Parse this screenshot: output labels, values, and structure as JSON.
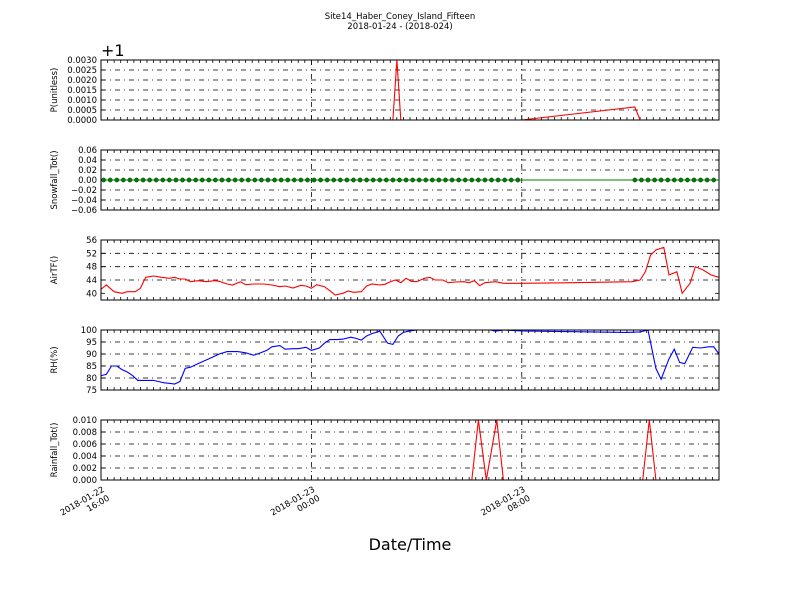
{
  "title": "Site14_Haber_Coney_Island_Fifteen",
  "subtitle": "2018-01-24 - (2018-024)",
  "xlabel": "Date/Time",
  "x_ticks": [
    "2018-01-22 16:00",
    "2018-01-23 00:00",
    "2018-01-23 08:00"
  ],
  "colors": {
    "red": "#ff0000",
    "blue": "#0000ff",
    "green": "#008000",
    "grid": "#000000"
  },
  "chart_data": [
    {
      "type": "line",
      "ylabel": "P(unitless)",
      "offset_label": "+1",
      "ylim": [
        0,
        0.003
      ],
      "yticks": [
        "0.0000",
        "0.0005",
        "0.0010",
        "0.0015",
        "0.0020",
        "0.0025",
        "0.0030"
      ],
      "ytick_values": [
        0,
        0.0005,
        0.001,
        0.0015,
        0.002,
        0.0025,
        0.003
      ],
      "series": [
        {
          "color": "red",
          "markers": false,
          "points": [
            [
              0,
              0
            ],
            [
              11.1,
              0
            ],
            [
              11.25,
              0.003
            ],
            [
              11.4,
              0
            ],
            [
              16,
              0
            ],
            [
              20.3,
              0.00065
            ],
            [
              20.5,
              0
            ],
            [
              23.5,
              0
            ]
          ]
        }
      ]
    },
    {
      "type": "line",
      "ylabel": "Snowfall_Tot()",
      "ylim": [
        -0.06,
        0.06
      ],
      "yticks": [
        "−0.06",
        "−0.04",
        "−0.02",
        "0.00",
        "0.02",
        "0.04",
        "0.06"
      ],
      "ytick_values": [
        -0.06,
        -0.04,
        -0.02,
        0,
        0.02,
        0.04,
        0.06
      ],
      "series": [
        {
          "color": "green",
          "markers": true,
          "marker_ranges": [
            [
              0.1,
              16,
              0.25
            ],
            [
              20.3,
              23.5,
              0.25
            ]
          ],
          "points": [
            [
              0,
              0
            ],
            [
              23.5,
              0
            ]
          ]
        }
      ]
    },
    {
      "type": "line",
      "ylabel": "AirTF()",
      "ylim": [
        38,
        56
      ],
      "yticks": [
        "40",
        "44",
        "48",
        "52",
        "56"
      ],
      "ytick_values": [
        40,
        44,
        48,
        52,
        56
      ],
      "series": [
        {
          "color": "red",
          "markers": false,
          "points": [
            [
              0,
              41.2
            ],
            [
              0.2,
              42.5
            ],
            [
              0.5,
              40.5
            ],
            [
              0.8,
              40
            ],
            [
              1,
              40.5
            ],
            [
              1.3,
              40.5
            ],
            [
              1.5,
              41.5
            ],
            [
              1.7,
              44.8
            ],
            [
              2,
              45.2
            ],
            [
              2.3,
              44.8
            ],
            [
              2.6,
              44.5
            ],
            [
              2.8,
              44.8
            ],
            [
              3,
              44.3
            ],
            [
              3.2,
              44.3
            ],
            [
              3.4,
              43.5
            ],
            [
              3.7,
              43.8
            ],
            [
              4,
              43.5
            ],
            [
              4.3,
              43.8
            ],
            [
              4.5,
              43.6
            ],
            [
              4.8,
              42.8
            ],
            [
              5,
              42.5
            ],
            [
              5.3,
              43.5
            ],
            [
              5.5,
              42.6
            ],
            [
              5.8,
              42.8
            ],
            [
              6.2,
              42.8
            ],
            [
              6.5,
              42.5
            ],
            [
              6.8,
              42
            ],
            [
              7,
              42.2
            ],
            [
              7.3,
              41.6
            ],
            [
              7.6,
              42.4
            ],
            [
              7.8,
              42.2
            ],
            [
              8,
              41.5
            ],
            [
              8.2,
              42.6
            ],
            [
              8.5,
              42
            ],
            [
              8.7,
              40.8
            ],
            [
              8.9,
              39.5
            ],
            [
              9.2,
              40
            ],
            [
              9.4,
              40.7
            ],
            [
              9.6,
              40.3
            ],
            [
              9.9,
              40.5
            ],
            [
              10.1,
              42.2
            ],
            [
              10.3,
              42.8
            ],
            [
              10.6,
              42.5
            ],
            [
              10.8,
              42.7
            ],
            [
              11,
              43.5
            ],
            [
              11.2,
              44
            ],
            [
              11.4,
              43.2
            ],
            [
              11.6,
              44.5
            ],
            [
              11.8,
              43.6
            ],
            [
              12,
              43.5
            ],
            [
              12.3,
              44.5
            ],
            [
              12.5,
              44.8
            ],
            [
              12.7,
              44
            ],
            [
              13,
              44
            ],
            [
              13.2,
              43.2
            ],
            [
              13.5,
              43.4
            ],
            [
              13.8,
              43.5
            ],
            [
              14,
              43.2
            ],
            [
              14.2,
              43.8
            ],
            [
              14.4,
              42.3
            ],
            [
              14.6,
              43.2
            ],
            [
              15,
              43.5
            ],
            [
              15.3,
              43
            ],
            [
              16,
              43
            ],
            [
              18,
              43.2
            ],
            [
              20.2,
              43.5
            ],
            [
              20.5,
              44
            ],
            [
              20.7,
              46.5
            ],
            [
              20.9,
              51.5
            ],
            [
              21.1,
              53
            ],
            [
              21.4,
              53.8
            ],
            [
              21.6,
              45.5
            ],
            [
              21.9,
              46.5
            ],
            [
              22.1,
              40
            ],
            [
              22.4,
              43
            ],
            [
              22.6,
              48
            ],
            [
              22.9,
              47
            ],
            [
              23.2,
              45.5
            ],
            [
              23.5,
              44.8
            ]
          ]
        }
      ]
    },
    {
      "type": "line",
      "ylabel": "RH(%)",
      "ylim": [
        75,
        100
      ],
      "yticks": [
        "75",
        "80",
        "85",
        "90",
        "95",
        "100"
      ],
      "ytick_values": [
        75,
        80,
        85,
        90,
        95,
        100
      ],
      "series": [
        {
          "color": "blue",
          "markers": false,
          "points": [
            [
              0,
              81
            ],
            [
              0.2,
              81.5
            ],
            [
              0.4,
              85
            ],
            [
              0.6,
              85
            ],
            [
              0.8,
              83.5
            ],
            [
              1,
              82.5
            ],
            [
              1.2,
              81
            ],
            [
              1.4,
              79
            ],
            [
              1.8,
              79
            ],
            [
              2,
              79
            ],
            [
              2.2,
              78.5
            ],
            [
              2.4,
              78
            ],
            [
              2.6,
              77.8
            ],
            [
              2.8,
              77.5
            ],
            [
              3,
              78.5
            ],
            [
              3.2,
              84
            ],
            [
              3.4,
              84.5
            ],
            [
              3.6,
              85.5
            ],
            [
              3.8,
              86.5
            ],
            [
              4,
              87.5
            ],
            [
              4.2,
              88.5
            ],
            [
              4.5,
              90
            ],
            [
              4.8,
              91
            ],
            [
              5.2,
              91
            ],
            [
              5.5,
              90.5
            ],
            [
              5.8,
              89.5
            ],
            [
              6,
              90.2
            ],
            [
              6.3,
              91.5
            ],
            [
              6.5,
              93
            ],
            [
              6.8,
              93.5
            ],
            [
              7,
              92
            ],
            [
              7.3,
              92.2
            ],
            [
              7.5,
              92.2
            ],
            [
              7.8,
              92.8
            ],
            [
              8,
              91.5
            ],
            [
              8.3,
              92.5
            ],
            [
              8.5,
              94.5
            ],
            [
              8.7,
              96
            ],
            [
              9,
              96
            ],
            [
              9.2,
              96.2
            ],
            [
              9.5,
              97
            ],
            [
              9.7,
              96.5
            ],
            [
              9.9,
              95.8
            ],
            [
              10.1,
              97.5
            ],
            [
              10.3,
              98.5
            ],
            [
              10.6,
              99.5
            ],
            [
              10.9,
              94.5
            ],
            [
              11.1,
              94
            ],
            [
              11.3,
              97.5
            ],
            [
              11.5,
              99
            ],
            [
              11.7,
              99.5
            ],
            [
              12,
              100
            ],
            [
              14.8,
              100
            ],
            [
              15,
              99.5
            ],
            [
              15.3,
              100
            ],
            [
              16,
              99.6
            ],
            [
              18,
              99.3
            ],
            [
              20,
              99
            ],
            [
              20.5,
              99.2
            ],
            [
              20.8,
              100
            ],
            [
              21.1,
              84
            ],
            [
              21.3,
              79.5
            ],
            [
              21.6,
              88
            ],
            [
              21.8,
              92
            ],
            [
              22,
              86.5
            ],
            [
              22.2,
              86
            ],
            [
              22.5,
              92.8
            ],
            [
              22.8,
              92.5
            ],
            [
              23.1,
              93
            ],
            [
              23.3,
              93
            ],
            [
              23.5,
              90
            ]
          ]
        }
      ]
    },
    {
      "type": "line",
      "ylabel": "Rainfall_Tot()",
      "ylim": [
        0,
        0.01
      ],
      "yticks": [
        "0.000",
        "0.002",
        "0.004",
        "0.006",
        "0.008",
        "0.010"
      ],
      "ytick_values": [
        0,
        0.002,
        0.004,
        0.006,
        0.008,
        0.01
      ],
      "series": [
        {
          "color": "red",
          "markers": false,
          "points": [
            [
              0,
              0
            ],
            [
              14.1,
              0
            ],
            [
              14.35,
              0.01
            ],
            [
              14.65,
              0
            ],
            [
              15.05,
              0.01
            ],
            [
              15.3,
              0
            ],
            [
              20.6,
              0
            ],
            [
              20.85,
              0.01
            ],
            [
              21.1,
              0
            ],
            [
              23.5,
              0
            ]
          ]
        }
      ]
    }
  ]
}
